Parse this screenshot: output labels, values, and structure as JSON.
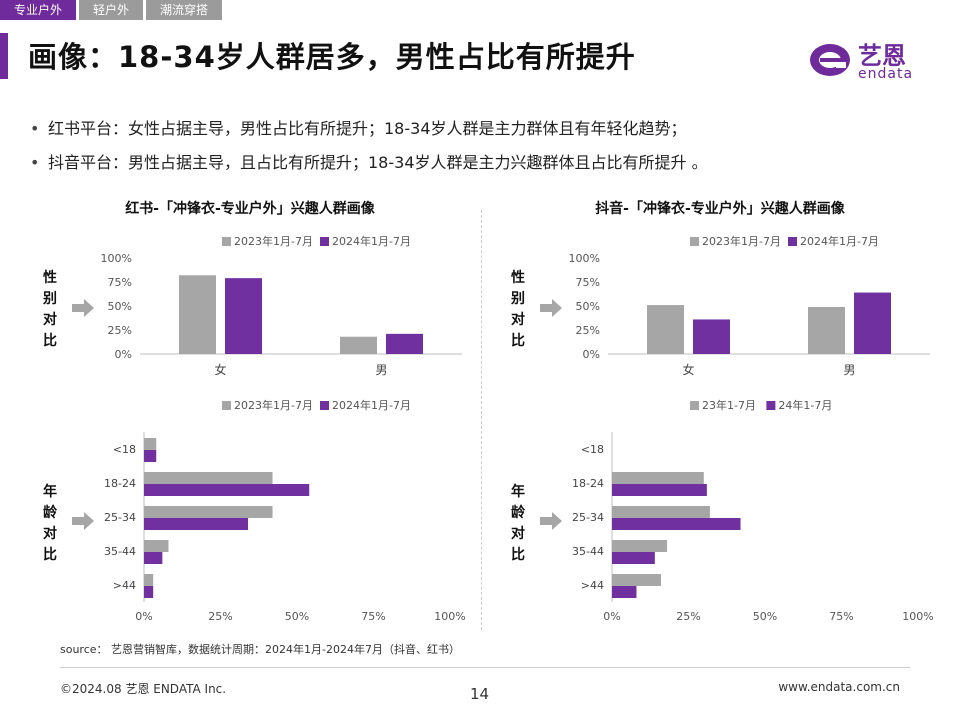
{
  "tabs": [
    {
      "label": "专业户外",
      "active": true
    },
    {
      "label": "轻户外",
      "active": false
    },
    {
      "label": "潮流穿搭",
      "active": false
    }
  ],
  "page_title": "画像：18-34岁人群居多，男性占比有所提升",
  "logo": {
    "cn": "艺恩",
    "en": "endata"
  },
  "bullets": [
    "红书平台：女性占据主导，男性占比有所提升；18-34岁人群是主力群体且有年轻化趋势；",
    "抖音平台：男性占据主导，且占比有所提升；18-34岁人群是主力兴趣群体且占比有所提升 。"
  ],
  "sections": {
    "left_title": "红书-「冲锋衣-专业户外」兴趣人群画像",
    "right_title": "抖音-「冲锋衣-专业户外」兴趣人群画像",
    "gender_label": [
      "性",
      "别",
      "对",
      "比"
    ],
    "age_label": [
      "年",
      "龄",
      "对",
      "比"
    ]
  },
  "colors": {
    "gray": "#a6a6a6",
    "purple": "#7030a0",
    "accent": "#6f2a9c"
  },
  "chart_data": [
    {
      "type": "bar",
      "platform": "红书",
      "chart": "gender",
      "categories": [
        "女",
        "男"
      ],
      "series": [
        {
          "name": "2023年1月-7月",
          "values": [
            82,
            18
          ]
        },
        {
          "name": "2024年1月-7月",
          "values": [
            79,
            21
          ]
        }
      ],
      "yticks": [
        "0%",
        "25%",
        "50%",
        "75%",
        "100%"
      ],
      "ylim": [
        0,
        100
      ],
      "legend": "top"
    },
    {
      "type": "bar",
      "platform": "抖音",
      "chart": "gender",
      "categories": [
        "女",
        "男"
      ],
      "series": [
        {
          "name": "2023年1月-7月",
          "values": [
            51,
            49
          ]
        },
        {
          "name": "2024年1月-7月",
          "values": [
            36,
            64
          ]
        }
      ],
      "yticks": [
        "0%",
        "25%",
        "50%",
        "75%",
        "100%"
      ],
      "ylim": [
        0,
        100
      ],
      "legend": "top"
    },
    {
      "type": "bar",
      "orientation": "horizontal",
      "platform": "红书",
      "chart": "age",
      "categories": [
        "<18",
        "18-24",
        "25-34",
        "35-44",
        ">44"
      ],
      "series": [
        {
          "name": "2023年1月-7月",
          "values": [
            4,
            42,
            42,
            8,
            3
          ]
        },
        {
          "name": "2024年1月-7月",
          "values": [
            4,
            54,
            34,
            6,
            3
          ]
        }
      ],
      "xticks": [
        "0%",
        "25%",
        "50%",
        "75%",
        "100%"
      ],
      "xlim": [
        0,
        100
      ],
      "legend": "top"
    },
    {
      "type": "bar",
      "orientation": "horizontal",
      "platform": "抖音",
      "chart": "age",
      "categories": [
        "<18",
        "18-24",
        "25-34",
        "35-44",
        ">44"
      ],
      "series": [
        {
          "name": "23年1-7月",
          "values": [
            0,
            30,
            32,
            18,
            16
          ]
        },
        {
          "name": "24年1-7月",
          "values": [
            0,
            31,
            42,
            14,
            8
          ]
        }
      ],
      "xticks": [
        "0%",
        "25%",
        "50%",
        "75%",
        "100%"
      ],
      "xlim": [
        0,
        100
      ],
      "legend": "top"
    }
  ],
  "source": "source： 艺恩营销智库，数据统计周期：2024年1月-2024年7月（抖音、红书）",
  "footer": {
    "left": "©2024.08  艺恩 ENDATA Inc.",
    "page": "14",
    "right": "www.endata.com.cn"
  }
}
